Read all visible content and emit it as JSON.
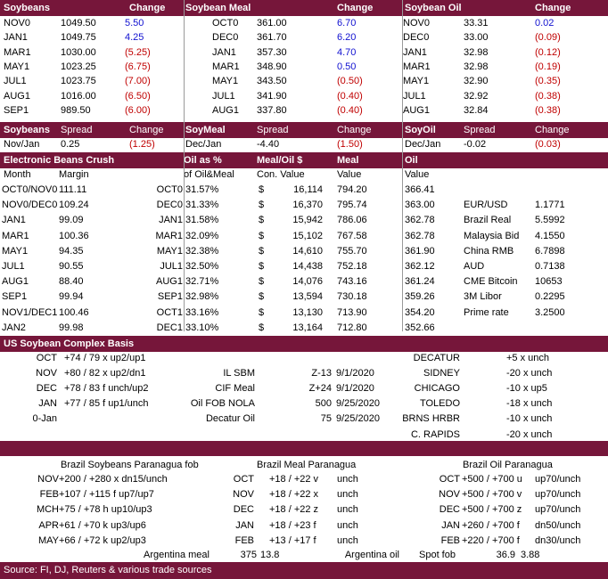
{
  "prices": {
    "headers": {
      "soy": "Soybeans",
      "soy_chg": "Change",
      "meal": "Soybean Meal",
      "meal_chg": "Change",
      "oil": "Soybean Oil",
      "oil_chg": "Change"
    },
    "rows": [
      {
        "sc": "NOV0",
        "sp": "1049.50",
        "sch": "5.50",
        "scol": "blue",
        "mc": "OCT0",
        "mp": "361.00",
        "mch": "6.70",
        "mcol": "blue",
        "oc": "NOV0",
        "op": "33.31",
        "och": "0.02",
        "ocol": "blue"
      },
      {
        "sc": "JAN1",
        "sp": "1049.75",
        "sch": "4.25",
        "scol": "blue",
        "mc": "DEC0",
        "mp": "361.70",
        "mch": "6.20",
        "mcol": "blue",
        "oc": "DEC0",
        "op": "33.00",
        "och": "(0.09)",
        "ocol": "red"
      },
      {
        "sc": "MAR1",
        "sp": "1030.00",
        "sch": "(5.25)",
        "scol": "red",
        "mc": "JAN1",
        "mp": "357.30",
        "mch": "4.70",
        "mcol": "blue",
        "oc": "JAN1",
        "op": "32.98",
        "och": "(0.12)",
        "ocol": "red"
      },
      {
        "sc": "MAY1",
        "sp": "1023.25",
        "sch": "(6.75)",
        "scol": "red",
        "mc": "MAR1",
        "mp": "348.90",
        "mch": "0.50",
        "mcol": "blue",
        "oc": "MAR1",
        "op": "32.98",
        "och": "(0.19)",
        "ocol": "red"
      },
      {
        "sc": "JUL1",
        "sp": "1023.75",
        "sch": "(7.00)",
        "scol": "red",
        "mc": "MAY1",
        "mp": "343.50",
        "mch": "(0.50)",
        "mcol": "red",
        "oc": "MAY1",
        "op": "32.90",
        "och": "(0.35)",
        "ocol": "red"
      },
      {
        "sc": "AUG1",
        "sp": "1016.00",
        "sch": "(6.50)",
        "scol": "red",
        "mc": "JUL1",
        "mp": "341.90",
        "mch": "(0.40)",
        "mcol": "red",
        "oc": "JUL1",
        "op": "32.92",
        "och": "(0.38)",
        "ocol": "red"
      },
      {
        "sc": "SEP1",
        "sp": "989.50",
        "sch": "(6.00)",
        "scol": "red",
        "mc": "AUG1",
        "mp": "337.80",
        "mch": "(0.40)",
        "mcol": "red",
        "oc": "AUG1",
        "op": "32.84",
        "och": "(0.38)",
        "ocol": "red"
      }
    ]
  },
  "spreads": {
    "headers": {
      "soy": "Soybeans",
      "soy_spread": "Spread",
      "soy_chg": "Change",
      "meal": "SoyMeal",
      "meal_spread": "Spread",
      "meal_chg": "Change",
      "oil": "SoyOil",
      "oil_spread": "Spread",
      "oil_chg": "Change"
    },
    "row": {
      "sl": "Nov/Jan",
      "sv": "0.25",
      "sch": "(1.25)",
      "ml": "Dec/Jan",
      "mv": "-4.40",
      "mch": "(1.50)",
      "ol": "Dec/Jan",
      "ov": "-0.02",
      "och": "(0.03)"
    }
  },
  "crush": {
    "headers": {
      "title": "Electronic Beans Crush",
      "oil_pct": "Oil as %",
      "meal_oil": "Meal/Oil $",
      "meal": "Meal",
      "oil": "Oil"
    },
    "subheaders": {
      "month": "Month",
      "margin": "Margin",
      "of_oil_meal": "of Oil&Meal",
      "con_value": "Con. Value",
      "meal_value": "Value",
      "oil_value": "Value"
    },
    "rows": [
      {
        "m": "OCT0/NOV0",
        "mg": "111.11",
        "c": "OCT0",
        "pct": "31.57%",
        "d": "$",
        "cv": "16,114",
        "mv": "794.20",
        "ov": "366.41",
        "k": "",
        "kv": ""
      },
      {
        "m": "NOV0/DEC0",
        "mg": "109.24",
        "c": "DEC0",
        "pct": "31.33%",
        "d": "$",
        "cv": "16,370",
        "mv": "795.74",
        "ov": "363.00",
        "k": "EUR/USD",
        "kv": "1.1771"
      },
      {
        "m": "JAN1",
        "mg": "99.09",
        "c": "JAN1",
        "pct": "31.58%",
        "d": "$",
        "cv": "15,942",
        "mv": "786.06",
        "ov": "362.78",
        "k": "Brazil Real",
        "kv": "5.5992"
      },
      {
        "m": "MAR1",
        "mg": "100.36",
        "c": "MAR1",
        "pct": "32.09%",
        "d": "$",
        "cv": "15,102",
        "mv": "767.58",
        "ov": "362.78",
        "k": "Malaysia Bid",
        "kv": "4.1550"
      },
      {
        "m": "MAY1",
        "mg": "94.35",
        "c": "MAY1",
        "pct": "32.38%",
        "d": "$",
        "cv": "14,610",
        "mv": "755.70",
        "ov": "361.90",
        "k": "China RMB",
        "kv": "6.7898"
      },
      {
        "m": "JUL1",
        "mg": "90.55",
        "c": "JUL1",
        "pct": "32.50%",
        "d": "$",
        "cv": "14,438",
        "mv": "752.18",
        "ov": "362.12",
        "k": "AUD",
        "kv": "0.7138"
      },
      {
        "m": "AUG1",
        "mg": "88.40",
        "c": "AUG1",
        "pct": "32.71%",
        "d": "$",
        "cv": "14,076",
        "mv": "743.16",
        "ov": "361.24",
        "k": "CME Bitcoin",
        "kv": "10653"
      },
      {
        "m": "SEP1",
        "mg": "99.94",
        "c": "SEP1",
        "pct": "32.98%",
        "d": "$",
        "cv": "13,594",
        "mv": "730.18",
        "ov": "359.26",
        "k": "3M Libor",
        "kv": "0.2295"
      },
      {
        "m": "NOV1/DEC1",
        "mg": "100.46",
        "c": "OCT1",
        "pct": "33.16%",
        "d": "$",
        "cv": "13,130",
        "mv": "713.90",
        "ov": "354.20",
        "k": "Prime rate",
        "kv": "3.2500"
      },
      {
        "m": "JAN2",
        "mg": "99.98",
        "c": "DEC1",
        "pct": "33.10%",
        "d": "$",
        "cv": "13,164",
        "mv": "712.80",
        "ov": "352.66",
        "k": "",
        "kv": ""
      }
    ]
  },
  "basis": {
    "title": "US Soybean Complex Basis",
    "rows": [
      {
        "a": "OCT",
        "b": "+74 / 79 x up2/up1",
        "c": "",
        "d": "",
        "e": "",
        "f": "DECATUR",
        "g": "+5 x unch"
      },
      {
        "a": "NOV",
        "b": "+80 / 82 x up2/dn1",
        "c": "IL SBM",
        "d": "Z-13",
        "e": "9/1/2020",
        "f": "SIDNEY",
        "g": "-20 x unch"
      },
      {
        "a": "DEC",
        "b": "+78 / 83 f unch/up2",
        "c": "CIF Meal",
        "d": "Z+24",
        "e": "9/1/2020",
        "f": "CHICAGO",
        "g": "-10 x up5"
      },
      {
        "a": "JAN",
        "b": "+77 / 85 f up1/unch",
        "c": "Oil FOB NOLA",
        "d": "500",
        "e": "9/25/2020",
        "f": "TOLEDO",
        "g": "-18 x unch"
      },
      {
        "a": "0-Jan",
        "b": "",
        "c": "Decatur Oil",
        "d": "75",
        "e": "9/25/2020",
        "f": "BRNS HRBR",
        "g": "-10 x unch"
      },
      {
        "a": "",
        "b": "",
        "c": "",
        "d": "",
        "e": "",
        "f": "C. RAPIDS",
        "g": "-20 x unch"
      }
    ]
  },
  "brazil": {
    "titles": {
      "soy": "Brazil Soybeans Paranagua fob",
      "meal": "Brazil Meal Paranagua",
      "oil": "Brazil Oil Paranagua"
    },
    "rows": [
      {
        "a": "NOV",
        "b": "+200 / +280 x dn15/unch",
        "c": "OCT",
        "d": "+18 / +22 v",
        "e": "unch",
        "f": "OCT",
        "g": "+500 / +700 u",
        "h": "up70/unch"
      },
      {
        "a": "FEB",
        "b": "+107 / +115 f up7/up7",
        "c": "NOV",
        "d": "+18 / +22 x",
        "e": "unch",
        "f": "NOV",
        "g": "+500 / +700 v",
        "h": "up70/unch"
      },
      {
        "a": "MCH",
        "b": "+75 / +78 h up10/up3",
        "c": "DEC",
        "d": "+18 / +22 z",
        "e": "unch",
        "f": "DEC",
        "g": "+500 / +700 z",
        "h": "up70/unch"
      },
      {
        "a": "APR",
        "b": "+61 / +70 k up3/up6",
        "c": "JAN",
        "d": "+18 / +23 f",
        "e": "unch",
        "f": "JAN",
        "g": "+260 / +700 f",
        "h": "dn50/unch"
      },
      {
        "a": "MAY",
        "b": "+66 / +72 k up2/up3",
        "c": "FEB",
        "d": "+13 / +17 f",
        "e": "unch",
        "f": "FEB",
        "g": "+220 / +700 f",
        "h": "dn30/unch"
      }
    ],
    "arg": {
      "meal_label": "Argentina meal",
      "meal_val": "375",
      "meal_chg": "13.8",
      "oil_label": "Argentina oil",
      "spot_label": "Spot fob",
      "oil_val": "36.9",
      "oil_chg": "3.88"
    }
  },
  "source": "Source: FI, DJ, Reuters & various trade sources",
  "colors": {
    "header_bg": "#76163a",
    "up": "#1010d0",
    "down": "#c00000"
  }
}
